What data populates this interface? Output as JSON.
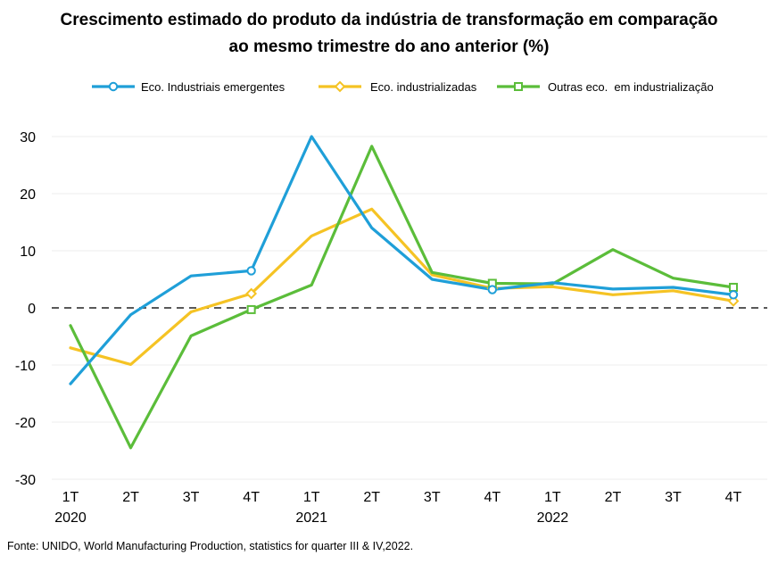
{
  "chart_data": {
    "type": "line",
    "title_lines": [
      "Crescimento estimado do produto da indústria de transformação em comparação",
      "ao mesmo trimestre do ano anterior (%)"
    ],
    "source": "Fonte: UNIDO, World Manufacturing Production, statistics for quarter III & IV,2022.",
    "categories": [
      "1T",
      "2T",
      "3T",
      "4T",
      "1T",
      "2T",
      "3T",
      "4T",
      "1T",
      "2T",
      "3T",
      "4T"
    ],
    "year_labels": [
      {
        "index": 0,
        "label": "2020"
      },
      {
        "index": 4,
        "label": "2021"
      },
      {
        "index": 8,
        "label": "2022"
      }
    ],
    "ylim": [
      -30,
      30
    ],
    "yticks": [
      30,
      20,
      10,
      0,
      -10,
      -20,
      -30
    ],
    "zero_line": "dashed",
    "grid": true,
    "legend_position": "top",
    "series": [
      {
        "name": "Eco. Industriais emergentes",
        "color": "#1f9fd8",
        "marker": "circle",
        "marker_indices": [
          3,
          7,
          11
        ],
        "values": [
          -13.3,
          -1.2,
          5.6,
          6.5,
          30.0,
          14.0,
          5.0,
          3.2,
          4.4,
          3.3,
          3.6,
          2.3
        ]
      },
      {
        "name": "Eco. industrializadas",
        "color": "#f5c324",
        "marker": "diamond",
        "marker_indices": [
          3,
          7,
          11
        ],
        "values": [
          -7.0,
          -9.9,
          -0.7,
          2.5,
          12.6,
          17.3,
          5.8,
          3.4,
          3.7,
          2.3,
          3.0,
          1.2
        ]
      },
      {
        "name": "Outras eco.  em industrialização",
        "color": "#5bbd3a",
        "marker": "square",
        "marker_indices": [
          3,
          7,
          11
        ],
        "values": [
          -3.1,
          -24.5,
          -4.9,
          -0.3,
          4.0,
          28.3,
          6.2,
          4.3,
          4.2,
          10.2,
          5.2,
          3.6
        ]
      }
    ]
  }
}
